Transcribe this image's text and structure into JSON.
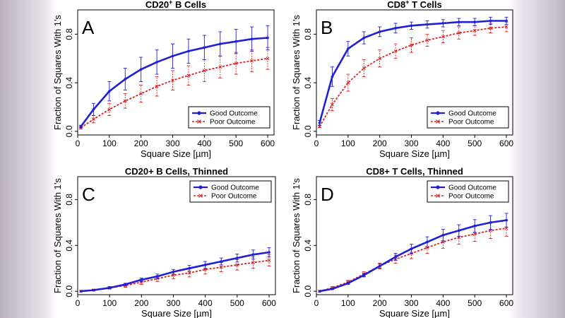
{
  "colors": {
    "good": "#1f1fd6",
    "poor": "#e02020",
    "frame": "#000000"
  },
  "chart_data": [
    {
      "type": "line",
      "panel_letter": "A",
      "title": "CD20",
      "title_sup": "+",
      "title_rest": " B Cells",
      "xlabel": "Square Size [µm]",
      "ylabel": "Fraction of Squares With 1's",
      "xlim": [
        0,
        620
      ],
      "ylim": [
        -0.03,
        1.0
      ],
      "xticks": [
        0,
        100,
        200,
        300,
        400,
        500,
        600
      ],
      "yticks": [
        0.0,
        0.4,
        0.8
      ],
      "legend_position": "bottom-right",
      "series": [
        {
          "name": "Good Outcome",
          "marker": "dot",
          "x": [
            10,
            50,
            100,
            150,
            200,
            250,
            300,
            350,
            400,
            450,
            500,
            550,
            600
          ],
          "values": [
            0.04,
            0.18,
            0.33,
            0.43,
            0.51,
            0.57,
            0.62,
            0.66,
            0.69,
            0.72,
            0.74,
            0.76,
            0.77
          ],
          "err": [
            0.01,
            0.05,
            0.08,
            0.09,
            0.1,
            0.1,
            0.1,
            0.1,
            0.1,
            0.1,
            0.1,
            0.1,
            0.1
          ]
        },
        {
          "name": "Poor Outcome",
          "marker": "x",
          "x": [
            10,
            50,
            100,
            150,
            200,
            250,
            300,
            350,
            400,
            450,
            500,
            550,
            600
          ],
          "values": [
            0.03,
            0.1,
            0.18,
            0.25,
            0.31,
            0.37,
            0.42,
            0.46,
            0.5,
            0.53,
            0.56,
            0.58,
            0.6
          ],
          "err": [
            0.01,
            0.03,
            0.05,
            0.06,
            0.07,
            0.08,
            0.08,
            0.08,
            0.09,
            0.09,
            0.09,
            0.09,
            0.09
          ]
        }
      ]
    },
    {
      "type": "line",
      "panel_letter": "B",
      "title": "CD8",
      "title_sup": "+",
      "title_rest": " T Cells",
      "xlabel": "Square Size [µm]",
      "ylabel": "Fraction of Squares With 1's",
      "xlim": [
        0,
        620
      ],
      "ylim": [
        -0.03,
        1.0
      ],
      "xticks": [
        0,
        100,
        200,
        300,
        400,
        500,
        600
      ],
      "yticks": [
        0.0,
        0.4,
        0.8
      ],
      "legend_position": "bottom-right",
      "series": [
        {
          "name": "Good Outcome",
          "marker": "dot",
          "x": [
            10,
            50,
            100,
            150,
            200,
            250,
            300,
            350,
            400,
            450,
            500,
            550,
            600
          ],
          "values": [
            0.07,
            0.45,
            0.68,
            0.77,
            0.82,
            0.85,
            0.87,
            0.88,
            0.89,
            0.9,
            0.9,
            0.91,
            0.91
          ],
          "err": [
            0.02,
            0.08,
            0.06,
            0.05,
            0.04,
            0.04,
            0.03,
            0.03,
            0.03,
            0.03,
            0.03,
            0.03,
            0.03
          ]
        },
        {
          "name": "Poor Outcome",
          "marker": "x",
          "x": [
            10,
            50,
            100,
            150,
            200,
            250,
            300,
            350,
            400,
            450,
            500,
            550,
            600
          ],
          "values": [
            0.04,
            0.22,
            0.4,
            0.52,
            0.6,
            0.66,
            0.71,
            0.75,
            0.78,
            0.81,
            0.83,
            0.85,
            0.86
          ],
          "err": [
            0.01,
            0.05,
            0.07,
            0.07,
            0.07,
            0.06,
            0.06,
            0.05,
            0.05,
            0.05,
            0.04,
            0.04,
            0.04
          ]
        }
      ]
    },
    {
      "type": "line",
      "panel_letter": "C",
      "title": "CD20+ B Cells, Thinned",
      "title_sup": "",
      "title_rest": "",
      "xlabel": "Square Size [µm]",
      "ylabel": "Fraction of Squares With 1's",
      "xlim": [
        0,
        620
      ],
      "ylim": [
        -0.03,
        1.0
      ],
      "xticks": [
        0,
        100,
        200,
        300,
        400,
        500,
        600
      ],
      "yticks": [
        0.0,
        0.4,
        0.8
      ],
      "legend_position": "top-right",
      "series": [
        {
          "name": "Good Outcome",
          "marker": "dot",
          "x": [
            10,
            50,
            100,
            150,
            200,
            250,
            300,
            350,
            400,
            450,
            500,
            550,
            600
          ],
          "values": [
            0.0,
            0.01,
            0.03,
            0.06,
            0.1,
            0.13,
            0.17,
            0.2,
            0.23,
            0.26,
            0.29,
            0.32,
            0.34
          ],
          "err": [
            0.0,
            0.005,
            0.01,
            0.01,
            0.015,
            0.02,
            0.02,
            0.025,
            0.03,
            0.03,
            0.035,
            0.04,
            0.04
          ]
        },
        {
          "name": "Poor Outcome",
          "marker": "x",
          "x": [
            10,
            50,
            100,
            150,
            200,
            250,
            300,
            350,
            400,
            450,
            500,
            550,
            600
          ],
          "values": [
            0.0,
            0.01,
            0.03,
            0.05,
            0.08,
            0.11,
            0.14,
            0.16,
            0.19,
            0.21,
            0.23,
            0.25,
            0.27
          ],
          "err": [
            0.0,
            0.005,
            0.01,
            0.015,
            0.02,
            0.025,
            0.03,
            0.035,
            0.04,
            0.04,
            0.045,
            0.05,
            0.05
          ]
        }
      ]
    },
    {
      "type": "line",
      "panel_letter": "D",
      "title": "CD8+ T Cells, Thinned",
      "title_sup": "",
      "title_rest": "",
      "xlabel": "Square Size [µm]",
      "ylabel": "Fraction of Squares With 1's",
      "xlim": [
        0,
        620
      ],
      "ylim": [
        -0.03,
        1.0
      ],
      "xticks": [
        0,
        100,
        200,
        300,
        400,
        500,
        600
      ],
      "yticks": [
        0.0,
        0.4,
        0.8
      ],
      "legend_position": "top-right",
      "series": [
        {
          "name": "Good Outcome",
          "marker": "dot",
          "x": [
            10,
            50,
            100,
            150,
            200,
            250,
            300,
            350,
            400,
            450,
            500,
            550,
            600
          ],
          "values": [
            0.0,
            0.02,
            0.07,
            0.14,
            0.22,
            0.3,
            0.37,
            0.43,
            0.49,
            0.53,
            0.57,
            0.6,
            0.62
          ],
          "err": [
            0.0,
            0.005,
            0.01,
            0.015,
            0.02,
            0.03,
            0.04,
            0.045,
            0.05,
            0.05,
            0.055,
            0.06,
            0.06
          ]
        },
        {
          "name": "Poor Outcome",
          "marker": "x",
          "x": [
            10,
            50,
            100,
            150,
            200,
            250,
            300,
            350,
            400,
            450,
            500,
            550,
            600
          ],
          "values": [
            0.0,
            0.03,
            0.08,
            0.15,
            0.22,
            0.28,
            0.33,
            0.38,
            0.43,
            0.47,
            0.5,
            0.53,
            0.55
          ],
          "err": [
            0.0,
            0.01,
            0.015,
            0.02,
            0.025,
            0.035,
            0.045,
            0.05,
            0.055,
            0.06,
            0.065,
            0.07,
            0.07
          ]
        }
      ]
    }
  ]
}
